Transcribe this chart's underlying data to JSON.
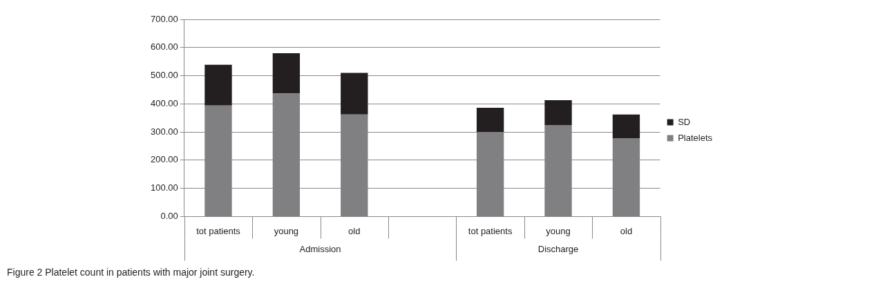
{
  "chart_data": {
    "type": "bar",
    "stacked": true,
    "categories": [
      "tot patients",
      "young",
      "old",
      null,
      "tot patients",
      "young",
      "old"
    ],
    "series": [
      {
        "name": "Platelets",
        "color": "#808083",
        "values": [
          394,
          437,
          362,
          null,
          300,
          325,
          278
        ]
      },
      {
        "name": "SD",
        "color": "#231f20",
        "values": [
          145,
          143,
          148,
          null,
          86,
          88,
          84
        ]
      }
    ],
    "ylim": [
      0,
      700
    ],
    "yticks": [
      {
        "value": 0,
        "label": "0.00"
      },
      {
        "value": 100,
        "label": "100.00"
      },
      {
        "value": 200,
        "label": "200.00"
      },
      {
        "value": 300,
        "label": "300.00"
      },
      {
        "value": 400,
        "label": "400.00"
      },
      {
        "value": 500,
        "label": "500.00"
      },
      {
        "value": 600,
        "label": "600.00"
      },
      {
        "value": 700,
        "label": "700.00"
      }
    ],
    "grid": "y",
    "legend": "right",
    "annotations": [
      "Admission",
      "Discharge",
      "Figure 2 Platelet count in patients with major joint surgery."
    ]
  }
}
